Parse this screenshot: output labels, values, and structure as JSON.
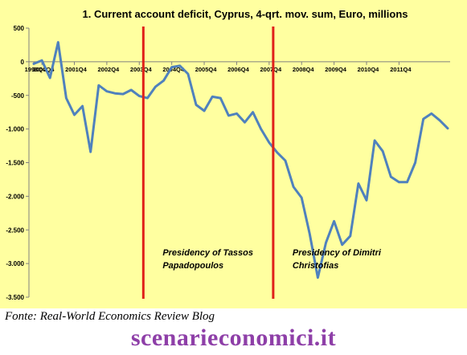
{
  "chart_data": {
    "type": "line",
    "title": "1. Current account deficit, Cyprus, 4-qrt. mov. sum, Euro, millions",
    "xlabel": "",
    "ylabel": "",
    "ylim": [
      -3500,
      500
    ],
    "yticks": [
      500,
      0,
      -500,
      -1000,
      -1500,
      -2000,
      -2500,
      -3000,
      -3500
    ],
    "ytick_labels": [
      "500",
      "0",
      "-500",
      "-1.000",
      "-1.500",
      "-2.000",
      "-2.500",
      "-3.000",
      "-3.500"
    ],
    "xtick_labels": [
      "1998Q4",
      "2000Q4",
      "2001Q4",
      "2002Q4",
      "2003Q4",
      "2004Q4",
      "2005Q4",
      "2006Q4",
      "2007Q4",
      "2008Q4",
      "2009Q4",
      "2010Q4",
      "2011Q4"
    ],
    "grid": false,
    "legend": "none",
    "series": [
      {
        "color": "#4f81bd",
        "values": [
          -30,
          20,
          -240,
          290,
          -540,
          -790,
          -660,
          -1340,
          -350,
          -440,
          -470,
          -480,
          -420,
          -510,
          -540,
          -370,
          -280,
          -80,
          -60,
          -180,
          -640,
          -730,
          -520,
          -540,
          -800,
          -770,
          -900,
          -750,
          -1000,
          -1200,
          -1350,
          -1470,
          -1860,
          -2020,
          -2560,
          -3210,
          -2690,
          -2370,
          -2720,
          -2590,
          -1810,
          -2060,
          -1170,
          -1330,
          -1710,
          -1790,
          -1790,
          -1500,
          -850,
          -770,
          -870,
          -990
        ]
      }
    ],
    "markers": [
      {
        "label_lines": [
          "Presidency of Tassos",
          "Papadopoulos"
        ],
        "color": "#e0201a",
        "after_tick": "2003Q4"
      },
      {
        "label_lines": [
          "Presidency of Dimitri",
          "Christofias"
        ],
        "color": "#e0201a",
        "after_tick": "2007Q4"
      }
    ]
  },
  "source_note": "Fonte: Real-World Economics Review Blog",
  "watermark": "scenarieconomici.it"
}
